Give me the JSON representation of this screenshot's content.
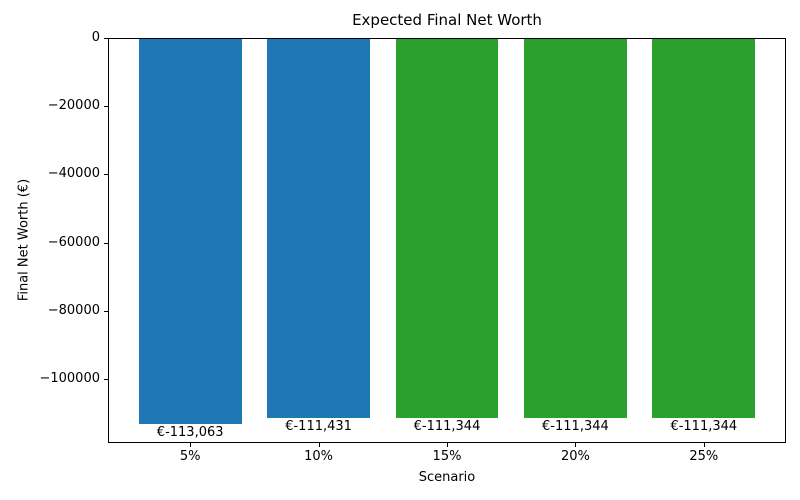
{
  "chart_data": {
    "type": "bar",
    "title": "Expected Final Net Worth",
    "xlabel": "Scenario",
    "ylabel": "Final Net Worth (€)",
    "categories": [
      "5%",
      "10%",
      "15%",
      "20%",
      "25%"
    ],
    "values": [
      -113063,
      -111431,
      -111344,
      -111344,
      -111344
    ],
    "bar_labels": [
      "€-113,063",
      "€-111,431",
      "€-111,344",
      "€-111,344",
      "€-111,344"
    ],
    "bar_colors": [
      "#1f77b4",
      "#1f77b4",
      "#2ca02c",
      "#2ca02c",
      "#2ca02c"
    ],
    "ylim": [
      -118716,
      0
    ],
    "xlim": [
      -0.64,
      4.64
    ],
    "bar_width": 0.8,
    "yticks": [
      0,
      -20000,
      -40000,
      -60000,
      -80000,
      -100000
    ],
    "ytick_labels": [
      "0",
      "−20000",
      "−40000",
      "−60000",
      "−80000",
      "−100000"
    ],
    "grid": false,
    "legend": null,
    "background": "#ffffff",
    "text_color": "#000000"
  }
}
